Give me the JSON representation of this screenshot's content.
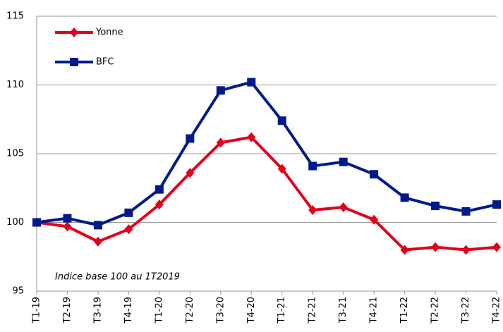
{
  "chart_data": {
    "type": "line",
    "categories": [
      "T1-19",
      "T2-19",
      "T3-19",
      "T4-19",
      "T1-20",
      "T2-20",
      "T3-20",
      "T4-20",
      "T1-21",
      "T2-21",
      "T3-21",
      "T4-21",
      "T1-22",
      "T2-22",
      "T3-22",
      "T4-22"
    ],
    "series": [
      {
        "name": "Yonne",
        "color": "#e2001a",
        "marker": "diamond",
        "values": [
          100,
          99.7,
          98.6,
          99.5,
          101.3,
          103.6,
          105.8,
          106.2,
          103.9,
          100.9,
          101.1,
          100.2,
          98.0,
          98.2,
          98.0,
          98.2
        ]
      },
      {
        "name": "BFC",
        "color": "#001a8c",
        "marker": "square",
        "values": [
          100,
          100.3,
          99.8,
          100.7,
          102.4,
          106.1,
          109.6,
          110.2,
          107.4,
          104.1,
          104.4,
          103.5,
          101.8,
          101.2,
          100.8,
          101.3
        ]
      }
    ],
    "ylim": [
      95,
      115
    ],
    "yticks": [
      95,
      100,
      105,
      110,
      115
    ],
    "grid": true,
    "annotation": "Indice base 100 au 1T2019",
    "legend": "top-left"
  }
}
